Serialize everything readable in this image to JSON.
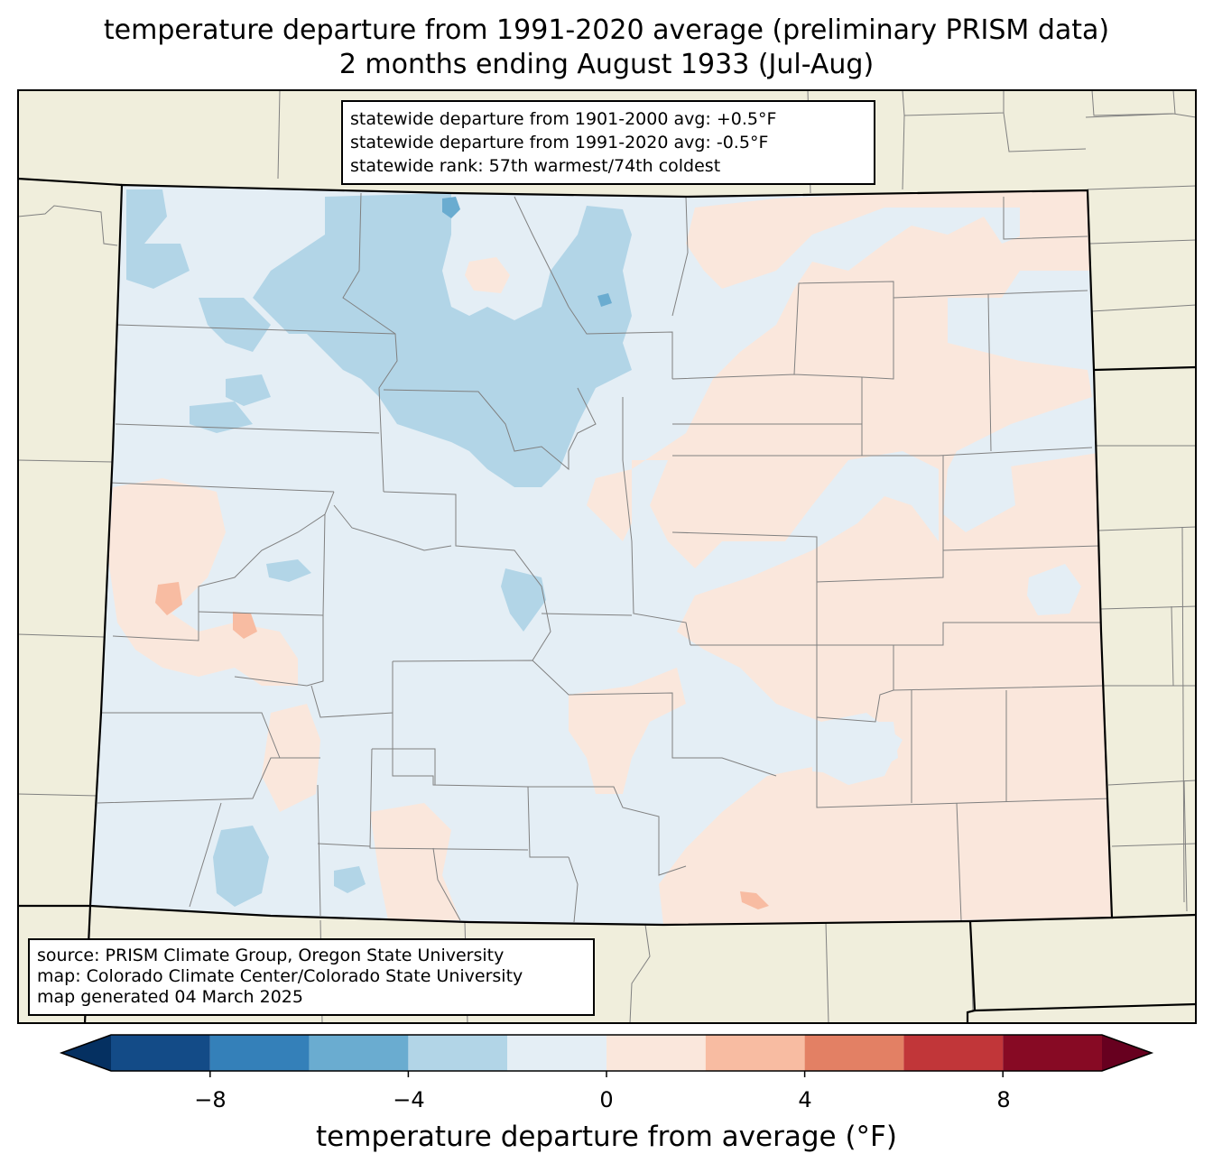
{
  "title": {
    "line1": "temperature departure from 1991-2020 average (preliminary PRISM data)",
    "line2": "2 months ending August 1933 (Jul-Aug)"
  },
  "stats": {
    "line1": "statewide departure from 1901-2000 avg: +0.5°F",
    "line2": "statewide departure from 1991-2020 avg: -0.5°F",
    "line3": "statewide rank: 57th warmest/74th coldest"
  },
  "source": {
    "line1": "source: PRISM Climate Group, Oregon State University",
    "line2": "map: Colorado Climate Center/Colorado State University",
    "line3": "map generated 04 March 2025"
  },
  "colorbar": {
    "label": "temperature departure from average (°F)",
    "ticks": [
      "−8",
      "−4",
      "0",
      "4",
      "8"
    ],
    "tick_values": [
      -8,
      -4,
      0,
      4,
      8
    ],
    "bin_edges": [
      -10,
      -8,
      -6,
      -4,
      -2,
      0,
      2,
      4,
      6,
      8,
      10
    ],
    "under_color": "#053061",
    "over_color": "#67001f",
    "colors": [
      "#134b87",
      "#3480b9",
      "#6aacd0",
      "#b2d5e7",
      "#e4eef5",
      "#fae7dc",
      "#f8bca2",
      "#e38064",
      "#c13639",
      "#870a24"
    ]
  },
  "map_colors": {
    "background": "#f0eedc",
    "state_border": "#000000",
    "county_border": "#808080"
  }
}
